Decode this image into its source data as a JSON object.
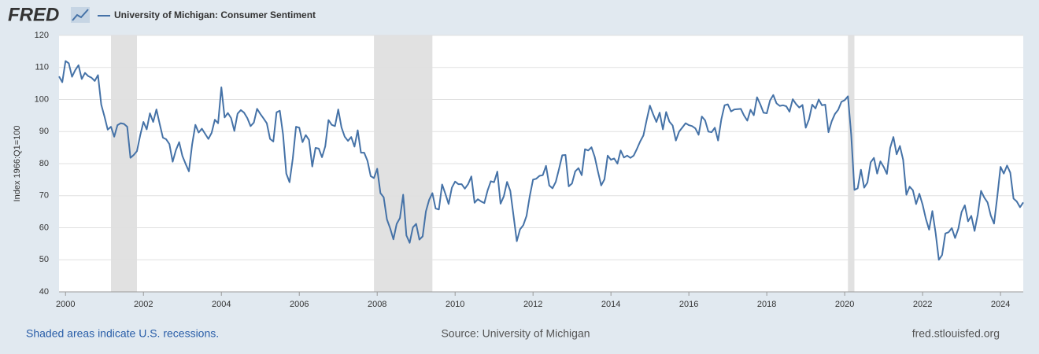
{
  "chart_data": {
    "type": "line",
    "logo": "FRED",
    "ylabel": "Index 1966:Q1=100",
    "note": "Shaded areas indicate U.S. recessions.",
    "source": "Source: University of Michigan",
    "site": "fred.stlouisfed.org",
    "grid": true,
    "recessions": [
      [
        "2001-03",
        "2001-11"
      ],
      [
        "2007-12",
        "2009-06"
      ],
      [
        "2020-02",
        "2020-04"
      ]
    ],
    "recession_color": "#e1e1e1",
    "xlim": [
      "1999-11",
      "2024-08"
    ],
    "xticks": [
      "2000",
      "2002",
      "2004",
      "2006",
      "2008",
      "2010",
      "2012",
      "2014",
      "2016",
      "2018",
      "2020",
      "2022",
      "2024"
    ],
    "ylim": [
      40,
      120
    ],
    "yticks": [
      40,
      50,
      60,
      70,
      80,
      90,
      100,
      110,
      120
    ],
    "x": [
      "1999-11",
      "1999-12",
      "2000-01",
      "2000-02",
      "2000-03",
      "2000-04",
      "2000-05",
      "2000-06",
      "2000-07",
      "2000-08",
      "2000-09",
      "2000-10",
      "2000-11",
      "2000-12",
      "2001-01",
      "2001-02",
      "2001-03",
      "2001-04",
      "2001-05",
      "2001-06",
      "2001-07",
      "2001-08",
      "2001-09",
      "2001-10",
      "2001-11",
      "2001-12",
      "2002-01",
      "2002-02",
      "2002-03",
      "2002-04",
      "2002-05",
      "2002-06",
      "2002-07",
      "2002-08",
      "2002-09",
      "2002-10",
      "2002-11",
      "2002-12",
      "2003-01",
      "2003-02",
      "2003-03",
      "2003-04",
      "2003-05",
      "2003-06",
      "2003-07",
      "2003-08",
      "2003-09",
      "2003-10",
      "2003-11",
      "2003-12",
      "2004-01",
      "2004-02",
      "2004-03",
      "2004-04",
      "2004-05",
      "2004-06",
      "2004-07",
      "2004-08",
      "2004-09",
      "2004-10",
      "2004-11",
      "2004-12",
      "2005-01",
      "2005-02",
      "2005-03",
      "2005-04",
      "2005-05",
      "2005-06",
      "2005-07",
      "2005-08",
      "2005-09",
      "2005-10",
      "2005-11",
      "2005-12",
      "2006-01",
      "2006-02",
      "2006-03",
      "2006-04",
      "2006-05",
      "2006-06",
      "2006-07",
      "2006-08",
      "2006-09",
      "2006-10",
      "2006-11",
      "2006-12",
      "2007-01",
      "2007-02",
      "2007-03",
      "2007-04",
      "2007-05",
      "2007-06",
      "2007-07",
      "2007-08",
      "2007-09",
      "2007-10",
      "2007-11",
      "2007-12",
      "2008-01",
      "2008-02",
      "2008-03",
      "2008-04",
      "2008-05",
      "2008-06",
      "2008-07",
      "2008-08",
      "2008-09",
      "2008-10",
      "2008-11",
      "2008-12",
      "2009-01",
      "2009-02",
      "2009-03",
      "2009-04",
      "2009-05",
      "2009-06",
      "2009-07",
      "2009-08",
      "2009-09",
      "2009-10",
      "2009-11",
      "2009-12",
      "2010-01",
      "2010-02",
      "2010-03",
      "2010-04",
      "2010-05",
      "2010-06",
      "2010-07",
      "2010-08",
      "2010-09",
      "2010-10",
      "2010-11",
      "2010-12",
      "2011-01",
      "2011-02",
      "2011-03",
      "2011-04",
      "2011-05",
      "2011-06",
      "2011-07",
      "2011-08",
      "2011-09",
      "2011-10",
      "2011-11",
      "2011-12",
      "2012-01",
      "2012-02",
      "2012-03",
      "2012-04",
      "2012-05",
      "2012-06",
      "2012-07",
      "2012-08",
      "2012-09",
      "2012-10",
      "2012-11",
      "2012-12",
      "2013-01",
      "2013-02",
      "2013-03",
      "2013-04",
      "2013-05",
      "2013-06",
      "2013-07",
      "2013-08",
      "2013-09",
      "2013-10",
      "2013-11",
      "2013-12",
      "2014-01",
      "2014-02",
      "2014-03",
      "2014-04",
      "2014-05",
      "2014-06",
      "2014-07",
      "2014-08",
      "2014-09",
      "2014-10",
      "2014-11",
      "2014-12",
      "2015-01",
      "2015-02",
      "2015-03",
      "2015-04",
      "2015-05",
      "2015-06",
      "2015-07",
      "2015-08",
      "2015-09",
      "2015-10",
      "2015-11",
      "2015-12",
      "2016-01",
      "2016-02",
      "2016-03",
      "2016-04",
      "2016-05",
      "2016-06",
      "2016-07",
      "2016-08",
      "2016-09",
      "2016-10",
      "2016-11",
      "2016-12",
      "2017-01",
      "2017-02",
      "2017-03",
      "2017-04",
      "2017-05",
      "2017-06",
      "2017-07",
      "2017-08",
      "2017-09",
      "2017-10",
      "2017-11",
      "2017-12",
      "2018-01",
      "2018-02",
      "2018-03",
      "2018-04",
      "2018-05",
      "2018-06",
      "2018-07",
      "2018-08",
      "2018-09",
      "2018-10",
      "2018-11",
      "2018-12",
      "2019-01",
      "2019-02",
      "2019-03",
      "2019-04",
      "2019-05",
      "2019-06",
      "2019-07",
      "2019-08",
      "2019-09",
      "2019-10",
      "2019-11",
      "2019-12",
      "2020-01",
      "2020-02",
      "2020-03",
      "2020-04",
      "2020-05",
      "2020-06",
      "2020-07",
      "2020-08",
      "2020-09",
      "2020-10",
      "2020-11",
      "2020-12",
      "2021-01",
      "2021-02",
      "2021-03",
      "2021-04",
      "2021-05",
      "2021-06",
      "2021-07",
      "2021-08",
      "2021-09",
      "2021-10",
      "2021-11",
      "2021-12",
      "2022-01",
      "2022-02",
      "2022-03",
      "2022-04",
      "2022-05",
      "2022-06",
      "2022-07",
      "2022-08",
      "2022-09",
      "2022-10",
      "2022-11",
      "2022-12",
      "2023-01",
      "2023-02",
      "2023-03",
      "2023-04",
      "2023-05",
      "2023-06",
      "2023-07",
      "2023-08",
      "2023-09",
      "2023-10",
      "2023-11",
      "2023-12",
      "2024-01",
      "2024-02",
      "2024-03",
      "2024-04",
      "2024-05",
      "2024-06",
      "2024-07",
      "2024-08"
    ],
    "series": [
      {
        "name": "University of Michigan: Consumer Sentiment",
        "color": "#4572a7",
        "values": [
          107.2,
          105.4,
          112.0,
          111.3,
          107.1,
          109.2,
          110.7,
          106.4,
          108.3,
          107.3,
          106.8,
          105.8,
          107.6,
          98.4,
          94.7,
          90.6,
          91.5,
          88.4,
          92.0,
          92.6,
          92.4,
          91.5,
          81.8,
          82.7,
          83.9,
          88.8,
          93.0,
          90.7,
          95.7,
          93.0,
          96.9,
          92.4,
          88.1,
          87.6,
          86.1,
          80.6,
          84.2,
          86.7,
          82.4,
          79.9,
          77.6,
          86.0,
          92.1,
          89.7,
          90.9,
          89.3,
          87.7,
          89.6,
          93.7,
          92.6,
          103.8,
          94.4,
          95.8,
          94.2,
          90.2,
          95.6,
          96.7,
          95.9,
          94.2,
          91.7,
          92.8,
          97.1,
          95.5,
          94.1,
          92.6,
          87.7,
          86.9,
          96.0,
          96.5,
          89.1,
          76.9,
          74.2,
          81.6,
          91.5,
          91.2,
          86.7,
          88.9,
          87.4,
          79.1,
          84.9,
          84.7,
          82.0,
          85.4,
          93.6,
          92.1,
          91.7,
          96.9,
          91.3,
          88.4,
          87.1,
          88.3,
          85.3,
          90.4,
          83.4,
          83.4,
          80.9,
          76.1,
          75.5,
          78.4,
          70.8,
          69.5,
          62.6,
          59.8,
          56.4,
          61.2,
          63.0,
          70.3,
          57.6,
          55.3,
          60.1,
          61.2,
          56.3,
          57.3,
          65.1,
          68.7,
          70.8,
          66.0,
          65.7,
          73.5,
          70.6,
          67.4,
          72.5,
          74.4,
          73.6,
          73.6,
          72.2,
          73.6,
          76.0,
          67.8,
          68.9,
          68.2,
          67.7,
          71.6,
          74.5,
          74.2,
          77.5,
          67.5,
          69.8,
          74.3,
          71.5,
          63.7,
          55.8,
          59.5,
          60.8,
          63.7,
          69.9,
          75.0,
          75.3,
          76.2,
          76.4,
          79.3,
          73.2,
          72.3,
          74.3,
          78.3,
          82.6,
          82.7,
          72.9,
          73.8,
          77.6,
          78.6,
          76.4,
          84.5,
          84.1,
          85.1,
          82.1,
          77.5,
          73.2,
          75.1,
          82.5,
          81.2,
          81.6,
          80.0,
          84.1,
          81.9,
          82.5,
          81.8,
          82.5,
          84.6,
          86.9,
          88.8,
          93.6,
          98.1,
          95.4,
          93.0,
          95.9,
          90.7,
          96.1,
          93.1,
          91.9,
          87.2,
          90.0,
          91.3,
          92.6,
          92.0,
          91.7,
          91.0,
          89.0,
          94.7,
          93.5,
          90.0,
          89.8,
          91.2,
          87.2,
          93.8,
          98.2,
          98.5,
          96.3,
          96.9,
          97.0,
          97.1,
          95.0,
          93.4,
          96.8,
          95.1,
          100.7,
          98.5,
          95.9,
          95.7,
          99.7,
          101.4,
          98.8,
          98.0,
          98.2,
          97.9,
          96.2,
          100.1,
          98.6,
          97.5,
          98.3,
          91.2,
          93.8,
          98.4,
          97.2,
          100.0,
          98.2,
          98.4,
          89.8,
          93.2,
          95.5,
          96.8,
          99.3,
          99.8,
          101.0,
          89.1,
          71.8,
          72.3,
          78.1,
          72.5,
          74.1,
          80.4,
          81.8,
          76.9,
          80.7,
          79.0,
          76.8,
          84.9,
          88.3,
          82.9,
          85.5,
          81.2,
          70.3,
          72.8,
          71.7,
          67.4,
          70.6,
          67.2,
          62.8,
          59.4,
          65.2,
          58.4,
          50.0,
          51.5,
          58.2,
          58.6,
          59.9,
          56.8,
          59.7,
          64.9,
          67.0,
          62.0,
          63.7,
          59.0,
          64.2,
          71.5,
          69.4,
          67.9,
          63.8,
          61.3,
          69.7,
          79.0,
          76.9,
          79.4,
          77.2,
          69.1,
          68.2,
          66.4,
          67.9
        ]
      }
    ]
  }
}
